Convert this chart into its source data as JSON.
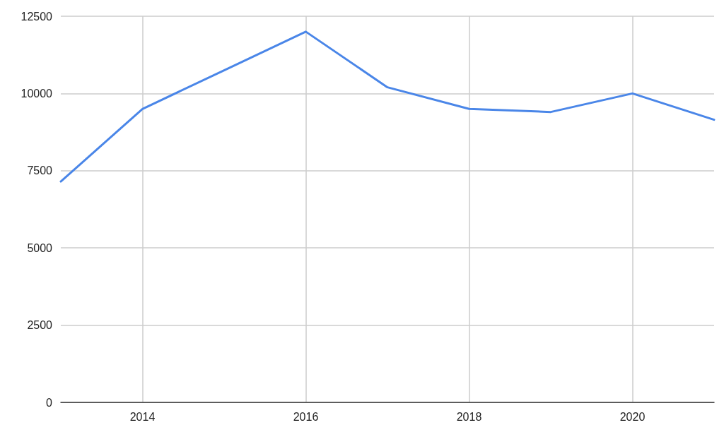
{
  "chart_data": {
    "type": "line",
    "x": [
      2013,
      2014,
      2015,
      2016,
      2017,
      2018,
      2019,
      2020,
      2021
    ],
    "series": [
      {
        "color": "#4a86e8",
        "values": [
          7150,
          9500,
          10750,
          12000,
          10200,
          9500,
          9400,
          10000,
          9150
        ]
      }
    ],
    "xlim": [
      2013,
      2021
    ],
    "xticks": [
      2014,
      2016,
      2018,
      2020
    ],
    "ylim": [
      0,
      12500
    ],
    "yticks": [
      0,
      2500,
      5000,
      7500,
      10000,
      12500
    ],
    "grid": true,
    "marker": "none",
    "line_style": "solid"
  }
}
